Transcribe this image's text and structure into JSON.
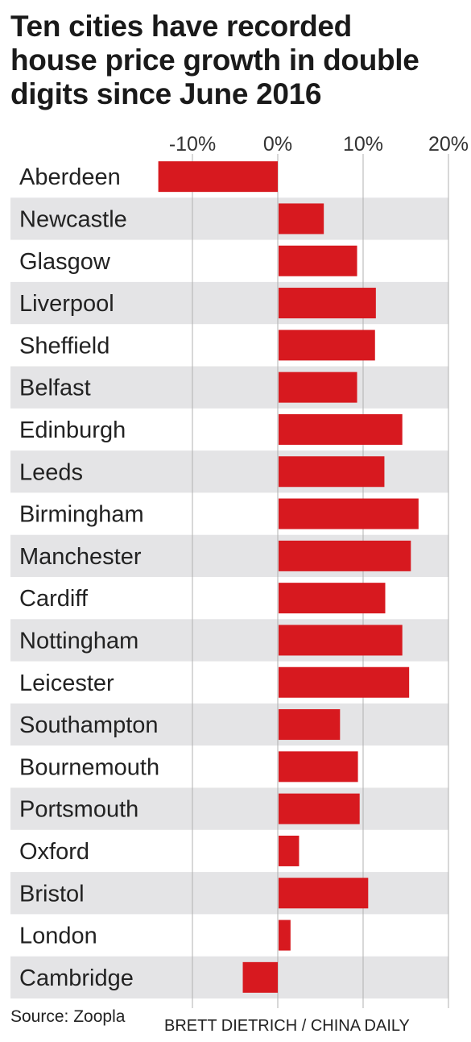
{
  "title_lines": [
    "Ten cities have recorded",
    "house price growth in double",
    "digits since June 2016"
  ],
  "source": "Source: Zoopla",
  "credit": "BRETT DIETRICH  / CHINA DAILY",
  "colors": {
    "bar": "#d7191f",
    "band": "#e4e4e6",
    "grid": "#b0b0b0",
    "text": "#222222"
  },
  "chart_data": {
    "type": "bar",
    "orientation": "horizontal",
    "title": "Ten cities have recorded house price growth in double digits since June 2016",
    "xlim": [
      -14,
      20
    ],
    "x_ticks": [
      -10,
      0,
      10,
      20
    ],
    "x_tick_labels": [
      "-10%",
      "0%",
      "10%",
      "20%"
    ],
    "grid": true,
    "categories": [
      "Aberdeen",
      "Newcastle",
      "Glasgow",
      "Liverpool",
      "Sheffield",
      "Belfast",
      "Edinburgh",
      "Leeds",
      "Birmingham",
      "Manchester",
      "Cardiff",
      "Nottingham",
      "Leicester",
      "Southampton",
      "Bournemouth",
      "Portsmouth",
      "Oxford",
      "Bristol",
      "London",
      "Cambridge"
    ],
    "values": [
      -14.0,
      5.3,
      9.2,
      11.4,
      11.3,
      9.2,
      14.5,
      12.4,
      16.4,
      15.5,
      12.5,
      14.5,
      15.3,
      7.2,
      9.3,
      9.5,
      2.4,
      10.5,
      1.4,
      -4.1
    ]
  }
}
